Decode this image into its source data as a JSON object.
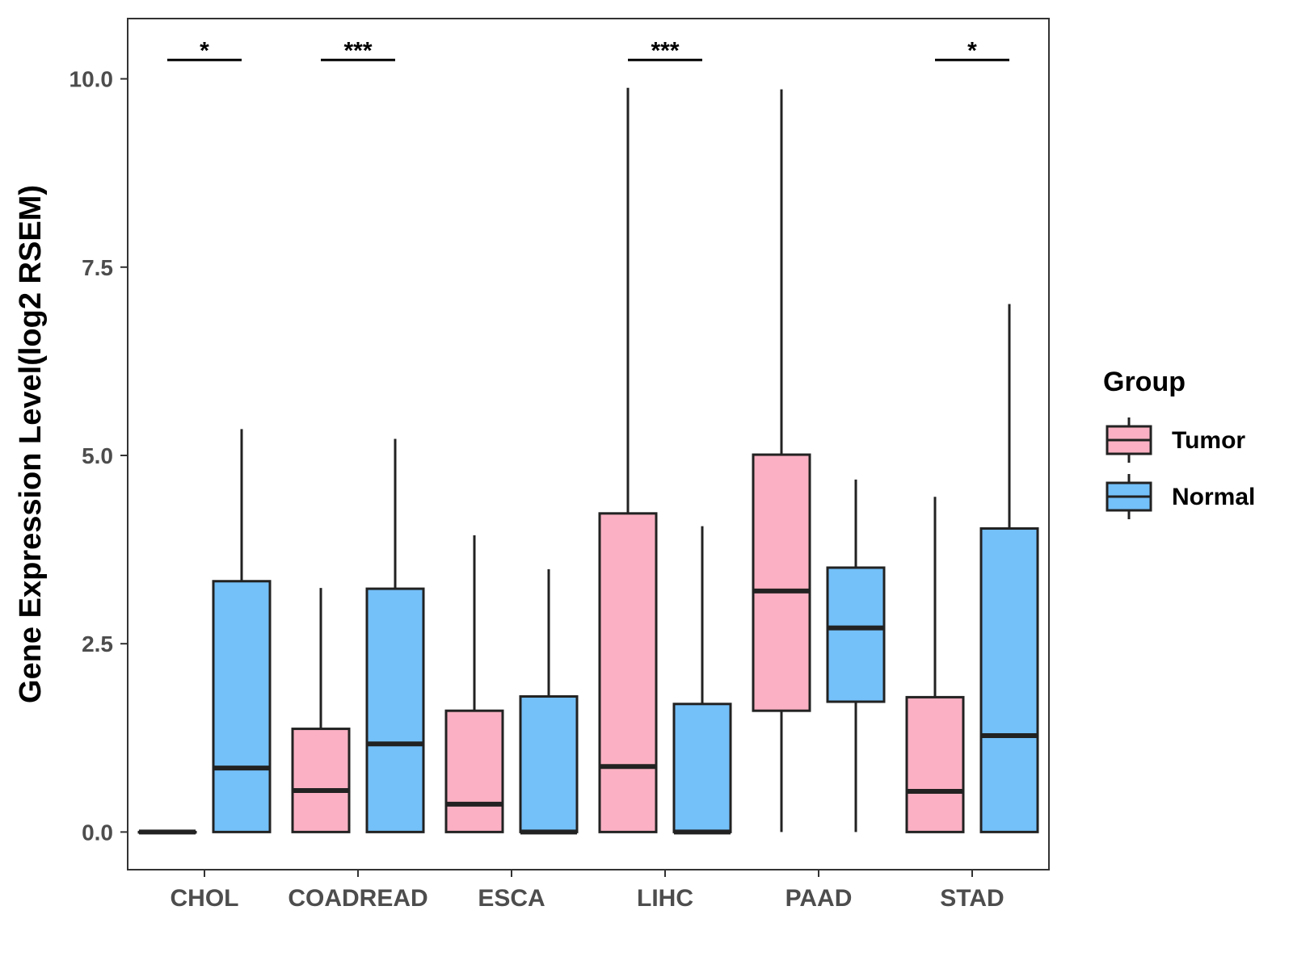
{
  "chart_data": {
    "type": "boxplot",
    "ylabel": "Gene Expression Level(log2 RSEM)",
    "xlabel": "",
    "ylim": [
      -0.5,
      10.8
    ],
    "yticks": [
      0.0,
      2.5,
      5.0,
      7.5,
      10.0
    ],
    "ytick_labels": [
      "0.0",
      "2.5",
      "5.0",
      "7.5",
      "10.0"
    ],
    "categories": [
      "CHOL",
      "COADREAD",
      "ESCA",
      "LIHC",
      "PAAD",
      "STAD"
    ],
    "legend": {
      "title": "Group",
      "position": "right",
      "entries": [
        {
          "name": "Tumor",
          "color": "#fbb1c3"
        },
        {
          "name": "Normal",
          "color": "#74c0f9"
        }
      ]
    },
    "series": [
      {
        "name": "Tumor",
        "color": "#fbb1c3",
        "boxes": [
          {
            "category": "CHOL",
            "min": 0.0,
            "q1": 0.0,
            "median": 0.0,
            "q3": 0.0,
            "max": 0.0
          },
          {
            "category": "COADREAD",
            "min": 0.0,
            "q1": 0.0,
            "median": 0.55,
            "q3": 1.37,
            "max": 3.24
          },
          {
            "category": "ESCA",
            "min": 0.0,
            "q1": 0.0,
            "median": 0.37,
            "q3": 1.61,
            "max": 3.94
          },
          {
            "category": "LIHC",
            "min": 0.0,
            "q1": 0.0,
            "median": 0.87,
            "q3": 4.23,
            "max": 9.88
          },
          {
            "category": "PAAD",
            "min": 0.0,
            "q1": 1.61,
            "median": 3.2,
            "q3": 5.01,
            "max": 9.86
          },
          {
            "category": "STAD",
            "min": 0.0,
            "q1": 0.0,
            "median": 0.54,
            "q3": 1.79,
            "max": 4.45
          }
        ]
      },
      {
        "name": "Normal",
        "color": "#74c0f9",
        "boxes": [
          {
            "category": "CHOL",
            "min": 0.0,
            "q1": 0.0,
            "median": 0.85,
            "q3": 3.33,
            "max": 5.35
          },
          {
            "category": "COADREAD",
            "min": 0.0,
            "q1": 0.0,
            "median": 1.17,
            "q3": 3.23,
            "max": 5.22
          },
          {
            "category": "ESCA",
            "min": 0.0,
            "q1": 0.0,
            "median": 0.0,
            "q3": 1.8,
            "max": 3.49
          },
          {
            "category": "LIHC",
            "min": 0.0,
            "q1": 0.0,
            "median": 0.0,
            "q3": 1.7,
            "max": 4.06
          },
          {
            "category": "PAAD",
            "min": 0.0,
            "q1": 1.73,
            "median": 2.71,
            "q3": 3.51,
            "max": 4.68
          },
          {
            "category": "STAD",
            "min": 0.0,
            "q1": 0.0,
            "median": 1.28,
            "q3": 4.03,
            "max": 7.01
          }
        ]
      }
    ],
    "annotations": [
      {
        "category": "CHOL",
        "label": "*",
        "y": 10.25
      },
      {
        "category": "COADREAD",
        "label": "***",
        "y": 10.25
      },
      {
        "category": "LIHC",
        "label": "***",
        "y": 10.25
      },
      {
        "category": "STAD",
        "label": "*",
        "y": 10.25
      }
    ]
  }
}
